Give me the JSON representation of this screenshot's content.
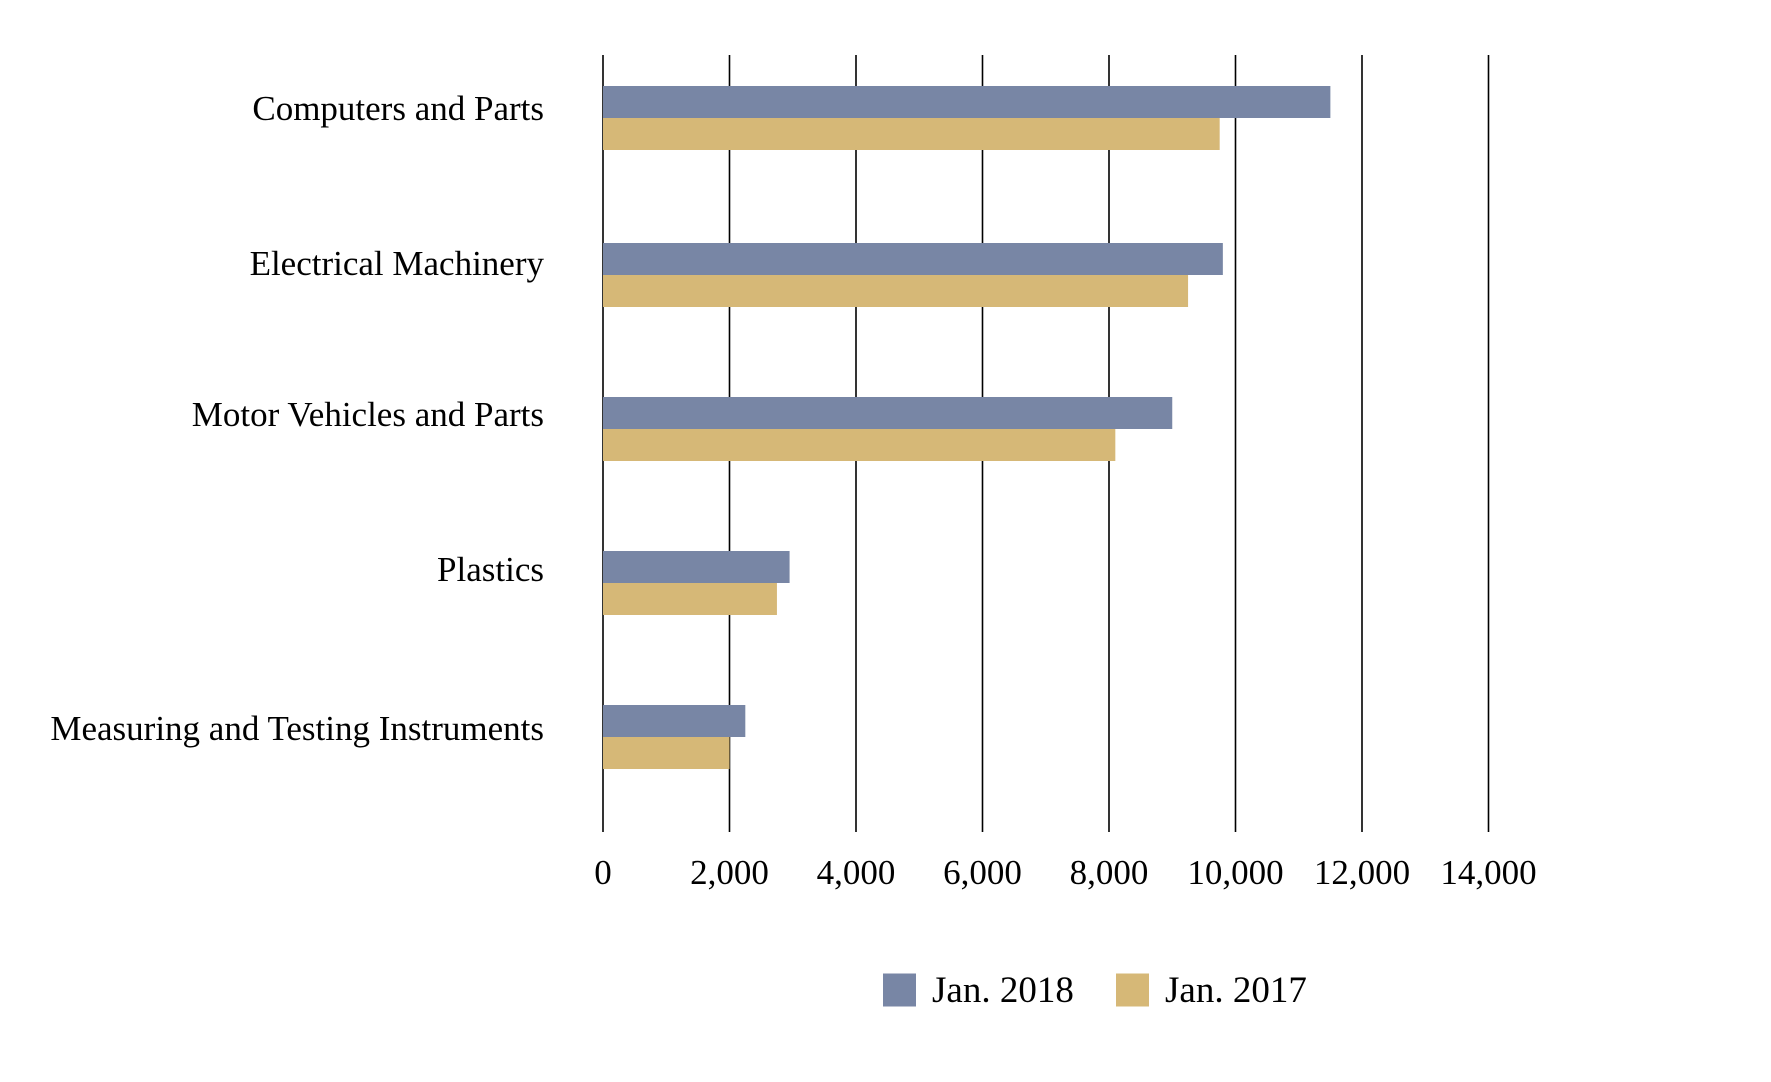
{
  "chart_data": {
    "type": "bar",
    "orientation": "horizontal",
    "categories": [
      "Computers and Parts",
      "Electrical Machinery",
      "Motor Vehicles and Parts",
      "Plastics",
      "Measuring and Testing Instruments"
    ],
    "series": [
      {
        "name": "Jan. 2018",
        "color": "#7886a5",
        "values": [
          11500,
          9800,
          9000,
          2950,
          2250
        ]
      },
      {
        "name": "Jan. 2017",
        "color": "#d6b877",
        "values": [
          9750,
          9250,
          8100,
          2750,
          2000
        ]
      }
    ],
    "xlim": [
      0,
      14000
    ],
    "ticks": [
      0,
      2000,
      4000,
      6000,
      8000,
      10000,
      12000,
      14000
    ],
    "tick_labels": [
      "0",
      "2,000",
      "4,000",
      "6,000",
      "8,000",
      "10,000",
      "12,000",
      "14,000"
    ],
    "grid": "vertical lines at each tick",
    "legend_position": "bottom-center"
  }
}
